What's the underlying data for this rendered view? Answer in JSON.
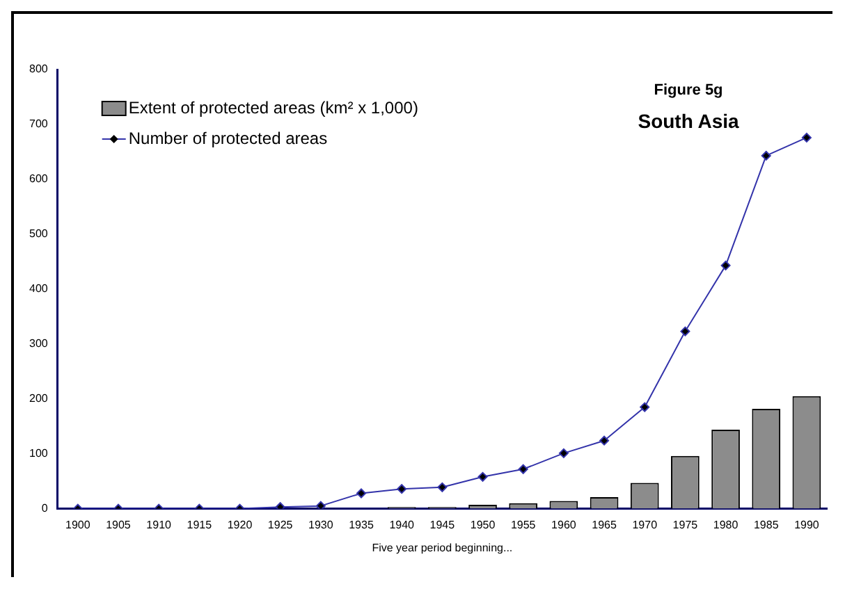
{
  "chart_data": {
    "type": "bar",
    "title": "Figure 5g",
    "subtitle": "South Asia",
    "xlabel": "Five year period beginning...",
    "categories": [
      "1900",
      "1905",
      "1910",
      "1915",
      "1920",
      "1925",
      "1930",
      "1935",
      "1940",
      "1945",
      "1950",
      "1955",
      "1960",
      "1965",
      "1970",
      "1975",
      "1980",
      "1985",
      "1990"
    ],
    "series": [
      {
        "name": "Extent of protected areas (km² x 1,000)",
        "color": "#8c8c8c",
        "values": [
          0,
          0,
          0,
          0,
          0,
          null,
          1,
          null,
          3,
          3,
          7,
          10,
          14,
          21,
          47,
          96,
          144,
          182,
          205
        ]
      },
      {
        "name": "Number of protected areas",
        "type": "line",
        "color": "#3333aa",
        "values": [
          0,
          0,
          0,
          0,
          0,
          3,
          5,
          28,
          36,
          39,
          58,
          72,
          101,
          124,
          185,
          323,
          443,
          643,
          676
        ]
      }
    ],
    "ylim": [
      0,
      800
    ],
    "yticks": [
      0,
      100,
      200,
      300,
      400,
      500,
      600,
      700,
      800
    ],
    "grid": false,
    "legend": "top left",
    "marker": "diamond"
  }
}
